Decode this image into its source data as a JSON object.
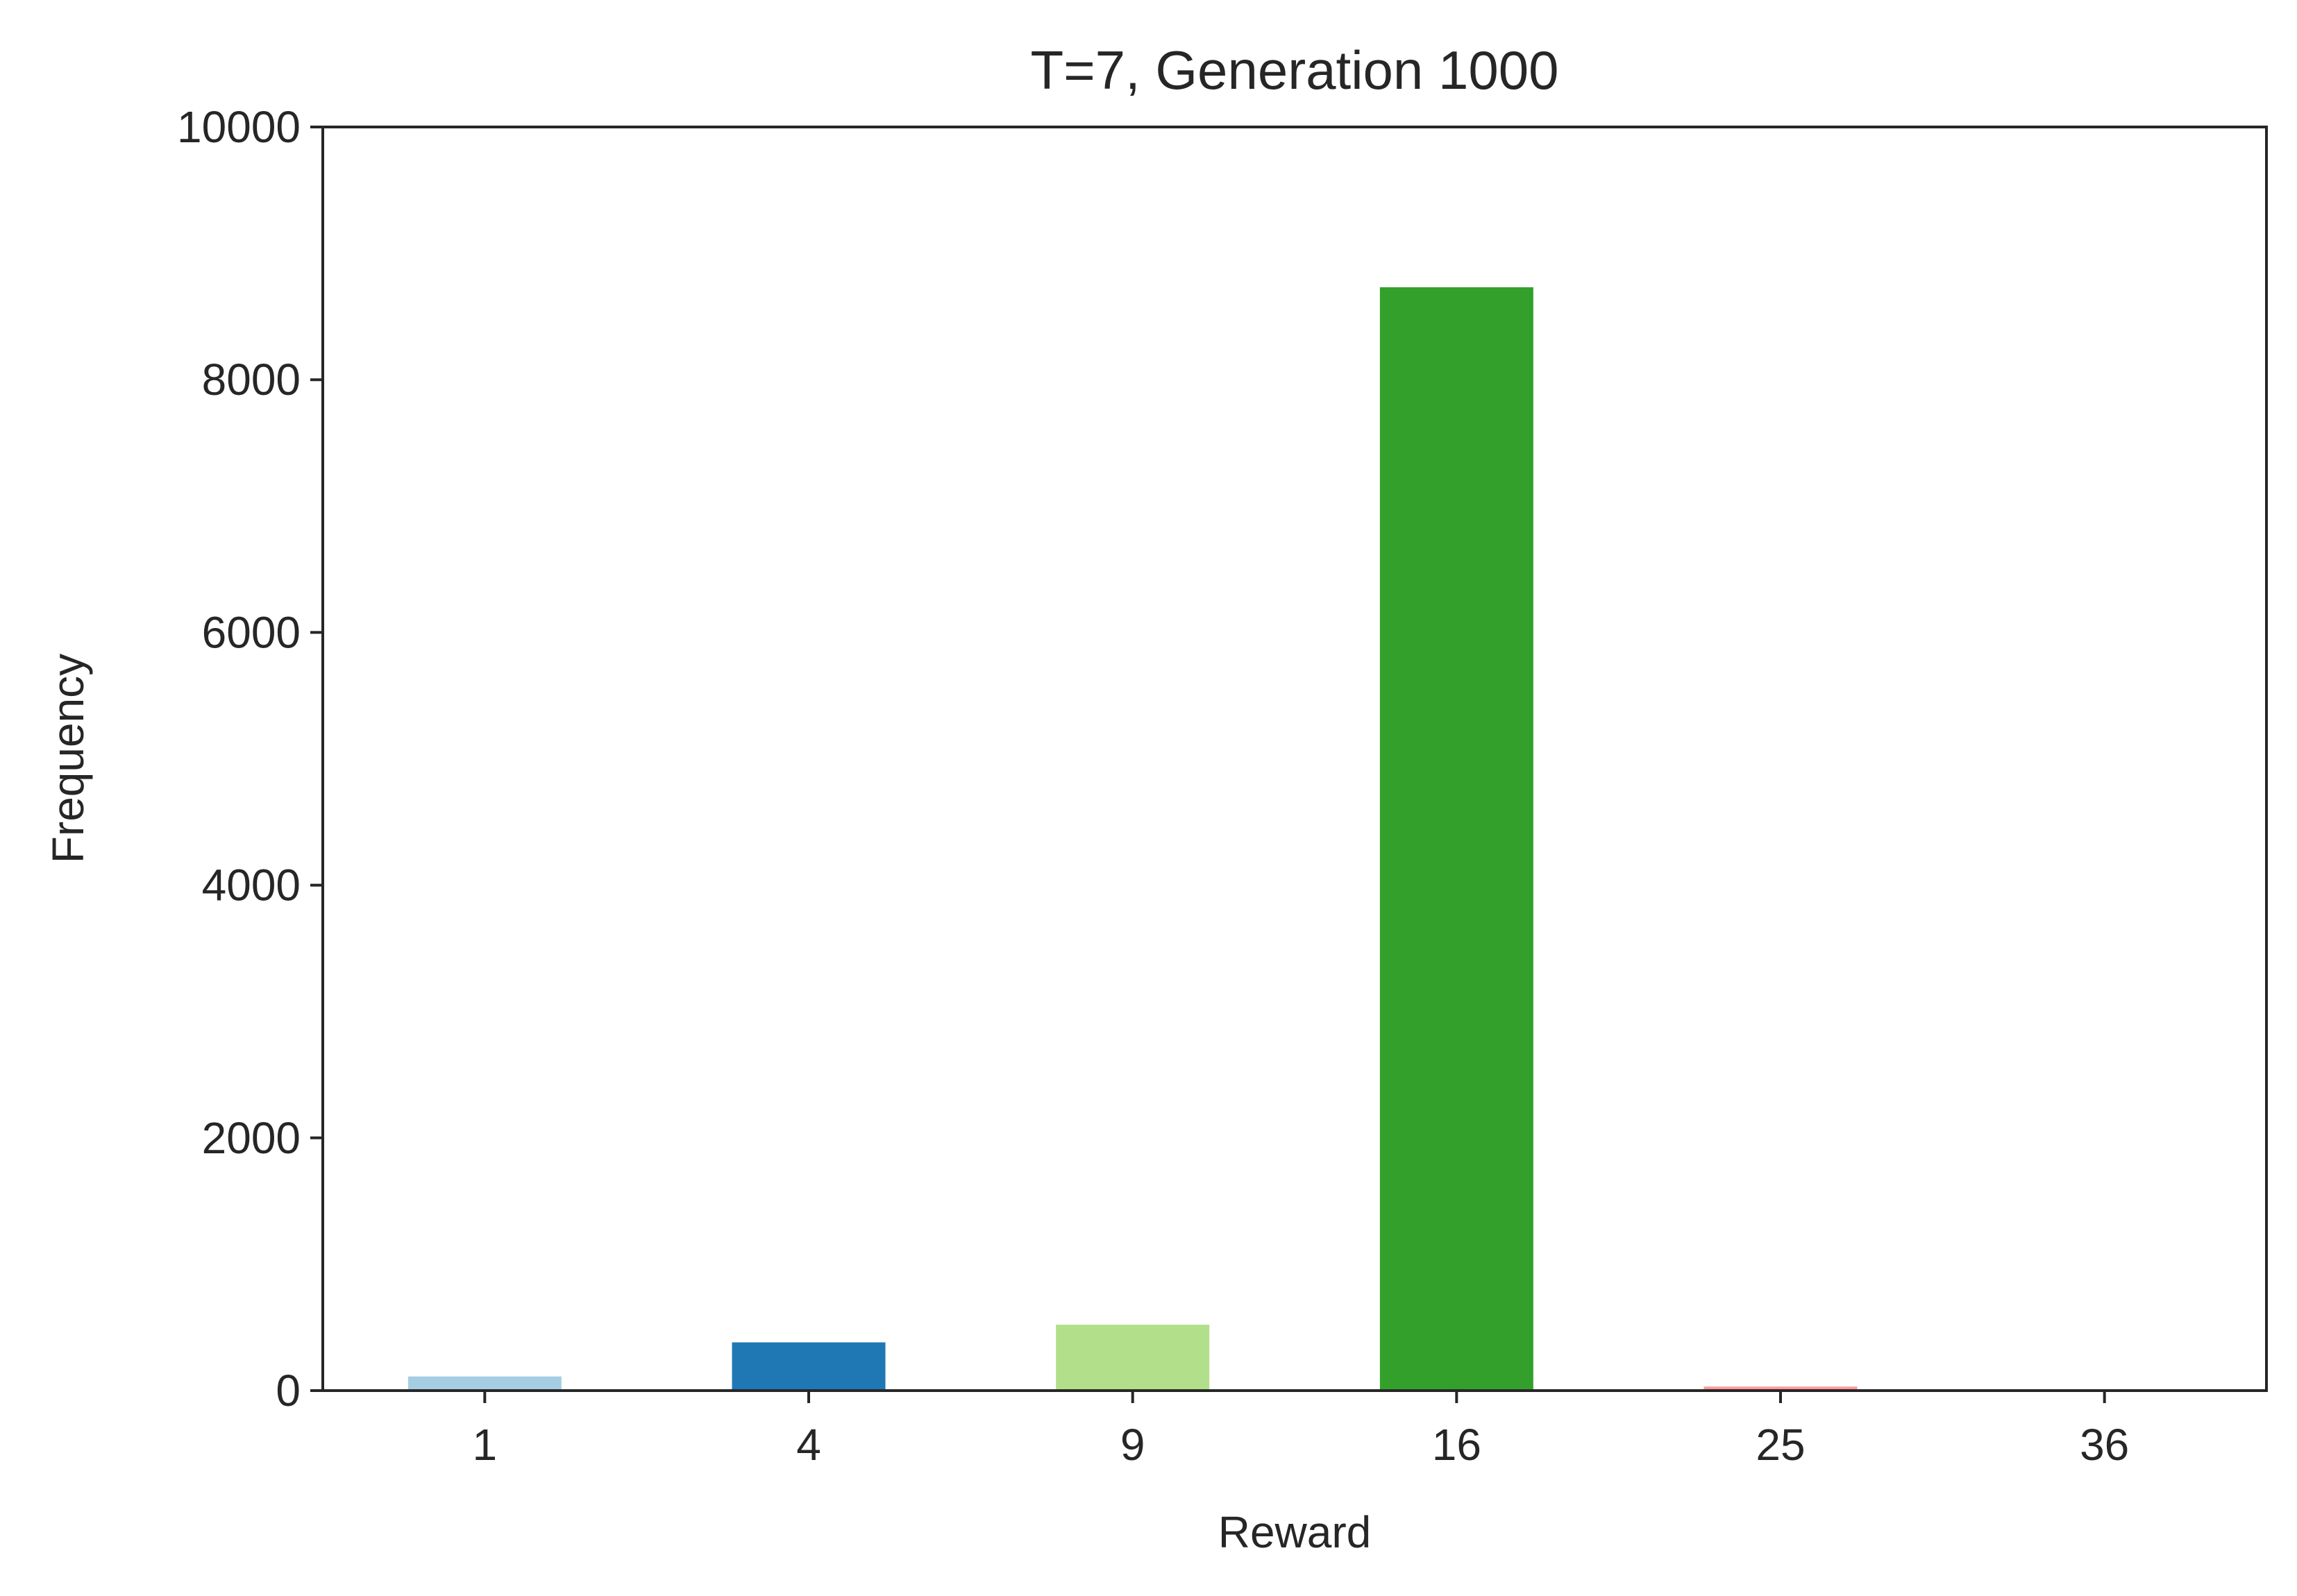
{
  "chart_data": {
    "type": "bar",
    "title": "T=7, Generation 1000",
    "xlabel": "Reward",
    "ylabel": "Frequency",
    "categories": [
      "1",
      "4",
      "9",
      "16",
      "25",
      "36"
    ],
    "values": [
      120,
      390,
      530,
      8740,
      40,
      0
    ],
    "colors": [
      "#a6cee3",
      "#1f78b4",
      "#b2df8a",
      "#33a02c",
      "#fb9a99",
      "#e31a1c"
    ],
    "ylim": [
      0,
      10000
    ],
    "yticks": [
      0,
      2000,
      4000,
      6000,
      8000,
      10000
    ],
    "grid": false,
    "legend": "none"
  }
}
